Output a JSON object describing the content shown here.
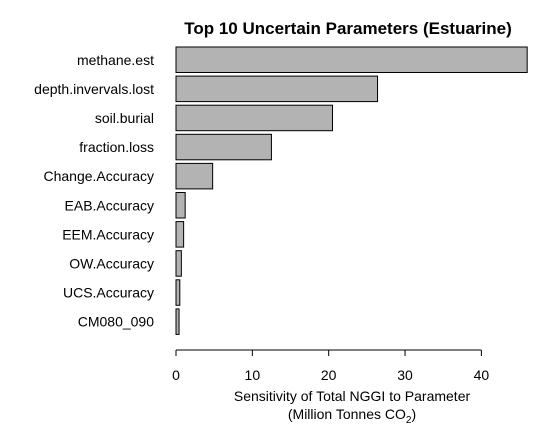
{
  "chart_data": {
    "type": "bar",
    "orientation": "horizontal",
    "title": "Top 10 Uncertain Parameters (Estuarine)",
    "xlabel_line1": "Sensitivity of Total NGGI to Parameter",
    "xlabel_line2_prefix": "(Million Tonnes CO",
    "xlabel_line2_sub": "2",
    "xlabel_line2_suffix": ")",
    "categories": [
      "methane.est",
      "depth.invervals.lost",
      "soil.burial",
      "fraction.loss",
      "Change.Accuracy",
      "EAB.Accuracy",
      "EEM.Accuracy",
      "OW.Accuracy",
      "UCS.Accuracy",
      "CM080_090"
    ],
    "values": [
      46.0,
      26.4,
      20.5,
      12.5,
      4.8,
      1.2,
      1.0,
      0.7,
      0.5,
      0.4
    ],
    "xlim": [
      0,
      46.5
    ],
    "xticks": [
      0,
      10,
      20,
      30,
      40
    ],
    "bar_color": "#b3b3b3",
    "grid": false,
    "legend": "none"
  }
}
